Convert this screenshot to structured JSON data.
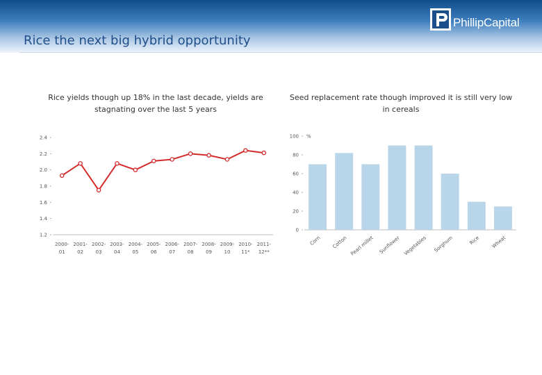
{
  "slide": {
    "title": "Rice the next big hybrid opportunity",
    "logo_text": "PhillipCapital",
    "logo_icon": "phillip-logo-icon"
  },
  "colors": {
    "header_dark": "#0f4c8a",
    "title_blue": "#1f4e88",
    "line_red": "#d32a2a",
    "bar_blue": "#b9d5e9"
  },
  "chart_data": [
    {
      "type": "line",
      "title": "Rice yields though up 18% in the last decade, yields are stagnating over the last 5 years",
      "categories": [
        "2000-01",
        "2001-02",
        "2002-03",
        "2003-04",
        "2004-05",
        "2005-06",
        "2006-07",
        "2007-08",
        "2008-09",
        "2009-10",
        "2010-11*",
        "2011-12**"
      ],
      "category_lines": [
        [
          "2000-",
          "01"
        ],
        [
          "2001-",
          "02"
        ],
        [
          "2002-",
          "03"
        ],
        [
          "2003-",
          "04"
        ],
        [
          "2004-",
          "05"
        ],
        [
          "2005-",
          "06"
        ],
        [
          "2006-",
          "07"
        ],
        [
          "2007-",
          "08"
        ],
        [
          "2008-",
          "09"
        ],
        [
          "2009-",
          "10"
        ],
        [
          "2010-",
          "11*"
        ],
        [
          "2011-",
          "12**"
        ]
      ],
      "values": [
        1.93,
        2.08,
        1.75,
        2.08,
        2.0,
        2.11,
        2.13,
        2.2,
        2.18,
        2.13,
        2.24,
        2.21
      ],
      "yticks": [
        "2.4",
        "2.2",
        "2.0",
        "1.8",
        "1.6",
        "1.4",
        "1.2"
      ],
      "ylim": [
        1.2,
        2.4
      ],
      "xlabel": "",
      "ylabel": "",
      "grid": false
    },
    {
      "type": "bar",
      "title": "Seed replacement rate though improved it is still very low in cereals",
      "categories": [
        "Corn",
        "Cotton",
        "Pearl millet",
        "Sunflower",
        "Vegetables",
        "Sorghum",
        "Rice",
        "Wheat"
      ],
      "values": [
        70,
        82,
        70,
        90,
        90,
        60,
        30,
        25
      ],
      "yticks": [
        "100",
        "80",
        "60",
        "40",
        "20",
        "0"
      ],
      "unit_label": "%",
      "ylim": [
        0,
        100
      ],
      "xlabel": "",
      "ylabel": "",
      "grid": false
    }
  ]
}
